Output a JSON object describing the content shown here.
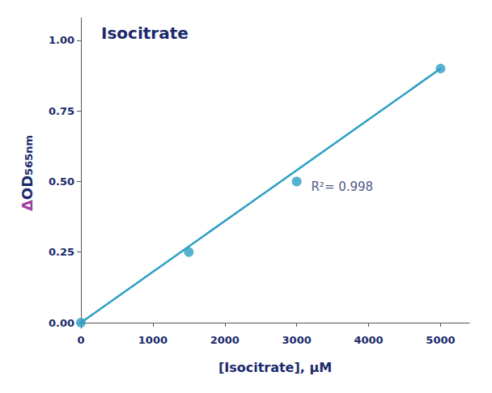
{
  "chart_data": {
    "type": "scatter",
    "title": "Isocitrate",
    "xlabel": "[Isocitrate], μM",
    "ylabel": [
      {
        "text": "Δ",
        "color": "#9B3FA0"
      },
      {
        "text": "OD",
        "color": "#1B2A6B"
      },
      {
        "text": "565nm",
        "color": "#1B2A6B"
      }
    ],
    "color": "#1B2A6B",
    "series": [
      {
        "type": "line",
        "color": "#2B9FC4",
        "x": [
          0,
          5000
        ],
        "values": [
          0.0,
          0.9
        ]
      },
      {
        "type": "scatter",
        "color": "#2B9FC4",
        "x": [
          0,
          1500,
          3000,
          5000
        ],
        "values": [
          0.0,
          0.25,
          0.5,
          0.9
        ]
      }
    ],
    "annotations": [
      {
        "text": "R²= 0.998",
        "x": 3200,
        "y": 0.48
      }
    ],
    "xlim": [
      0,
      5400
    ],
    "ylim": [
      -0.02,
      1.08
    ],
    "xticks": [
      0,
      1000,
      2000,
      3000,
      4000,
      5000
    ],
    "yticks": [
      {
        "value": 0,
        "label": "0.00"
      },
      0.25,
      {
        "value": 0.5,
        "label": "0.50"
      },
      0.75,
      {
        "value": 1,
        "label": "1.00"
      }
    ],
    "grid": false
  }
}
